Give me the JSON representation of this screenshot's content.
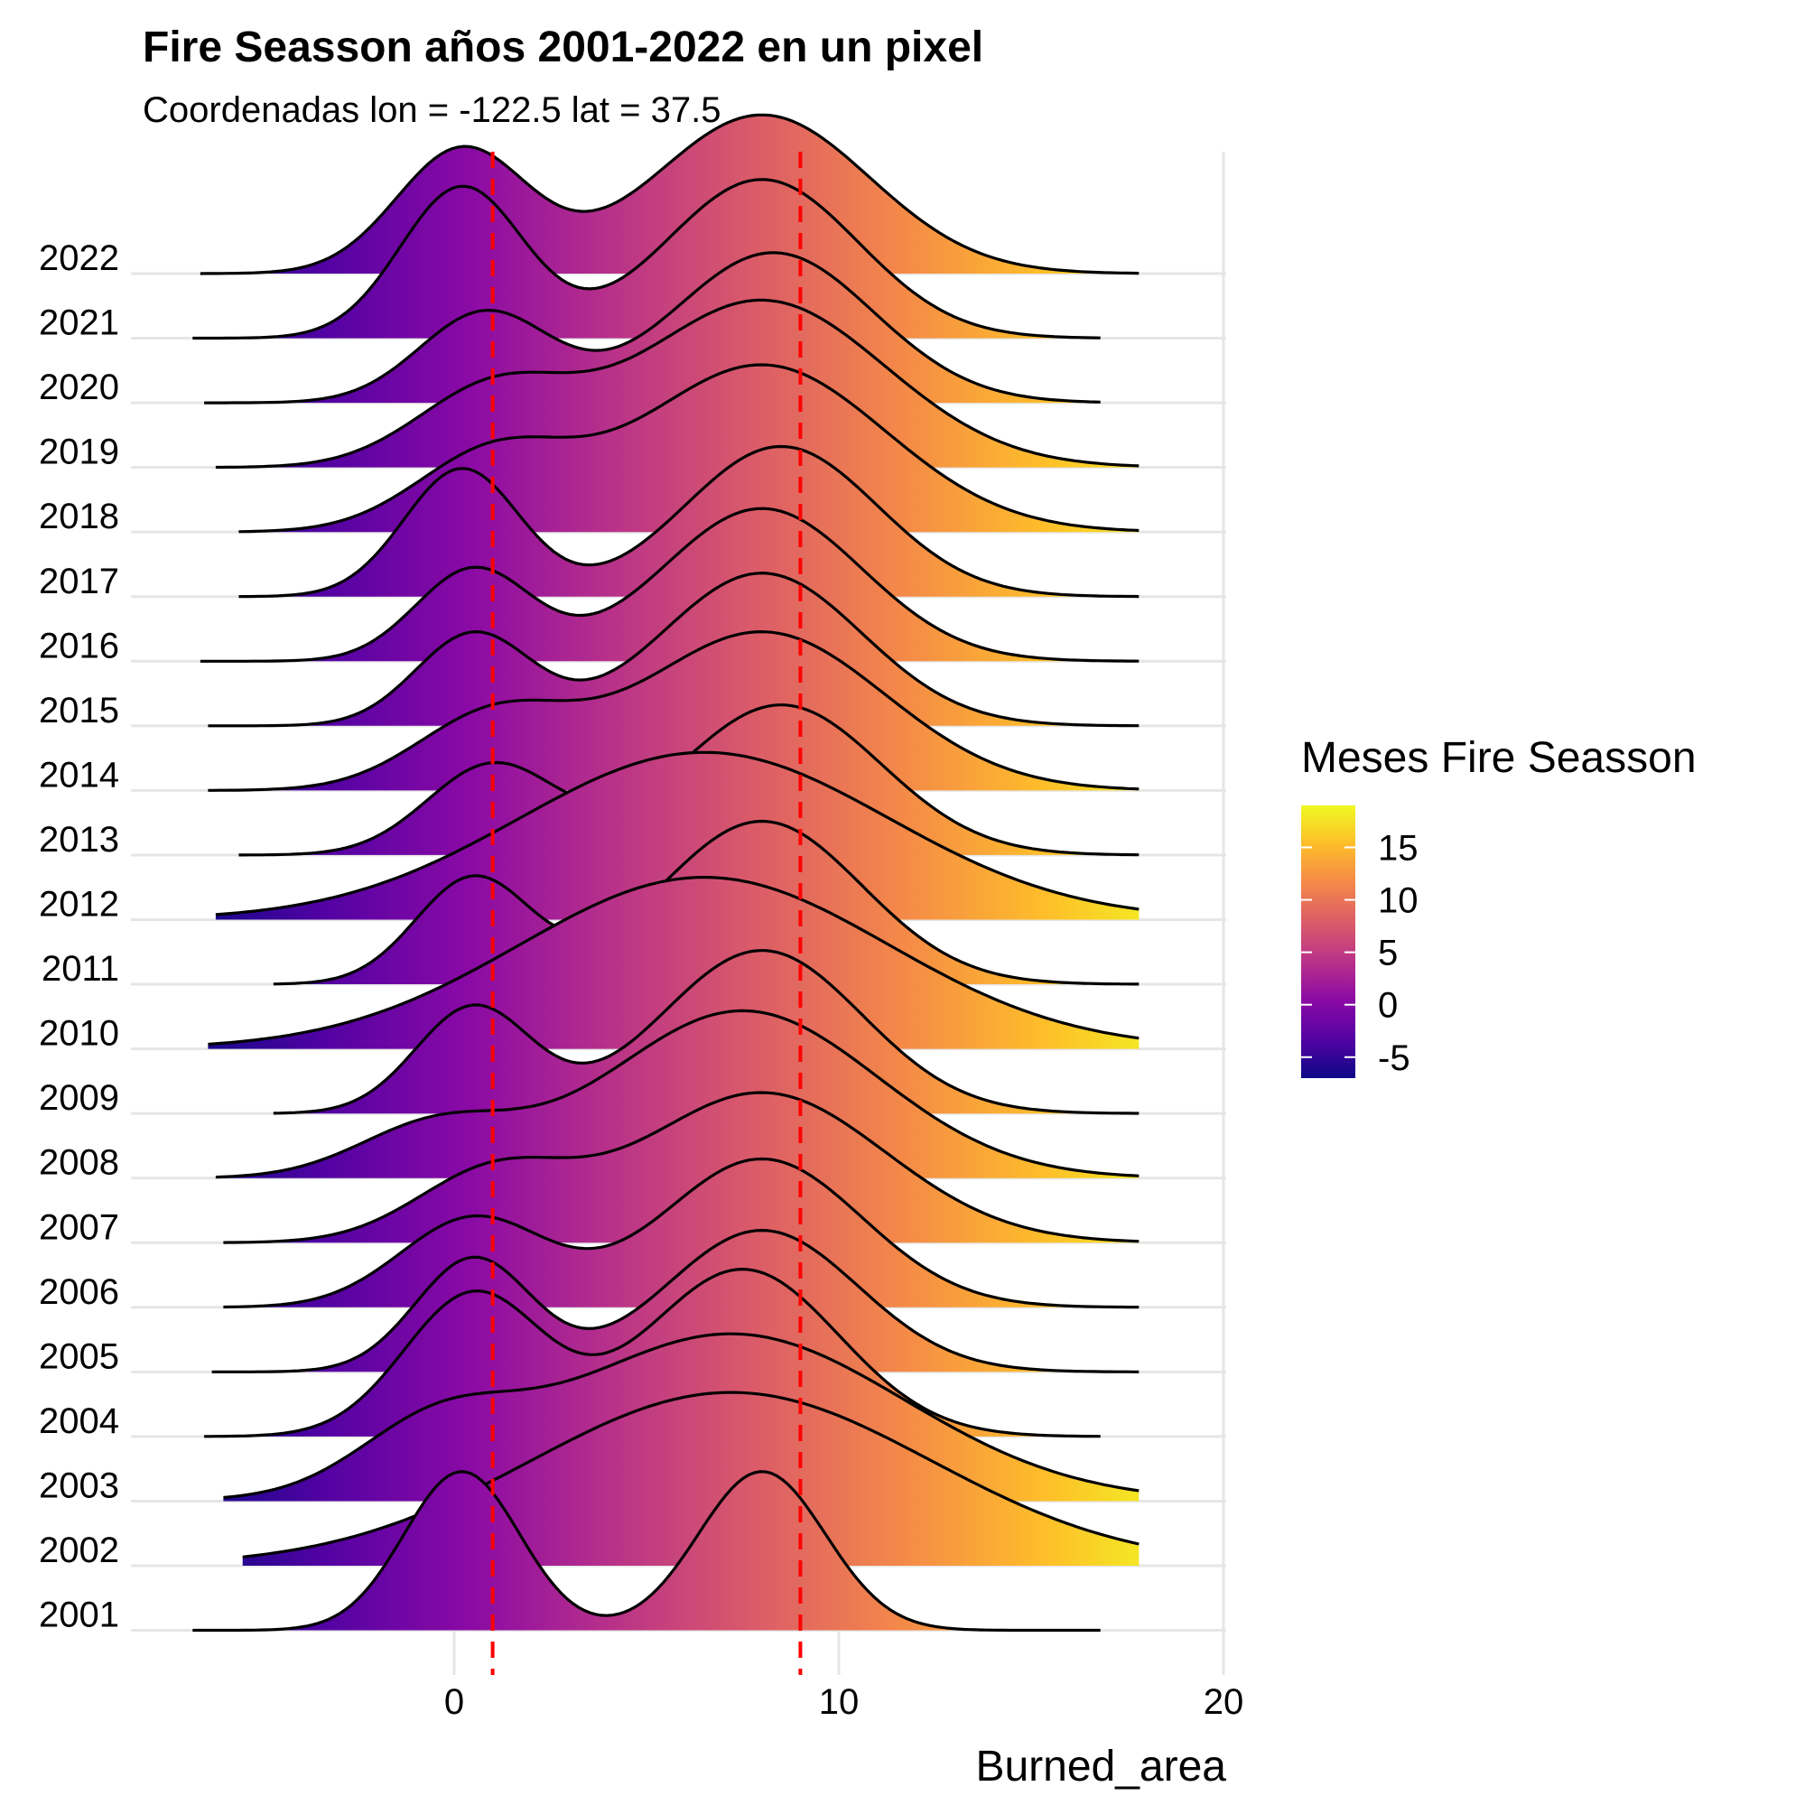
{
  "chart_data": {
    "type": "ridgeline",
    "title": "Fire Seasson años 2001-2022 en un pixel",
    "subtitle": "Coordenadas lon = -122.5 lat = 37.5",
    "xlabel": "Burned_area",
    "ylabel": "",
    "xlim": [
      -8.4,
      20
    ],
    "x_ticks": [
      0,
      10,
      20
    ],
    "grid": true,
    "reference_lines": [
      {
        "x": 1,
        "color": "#ff0000",
        "style": "dashed"
      },
      {
        "x": 9,
        "color": "#ff0000",
        "style": "dashed"
      }
    ],
    "legend": {
      "title": "Meses Fire Seasson",
      "placement": "right",
      "palette": [
        "#0d0887",
        "#5402a3",
        "#8b0aa5",
        "#b93289",
        "#db5c68",
        "#f48849",
        "#febd2a",
        "#f0f921"
      ],
      "range": [
        -7,
        19
      ],
      "ticks": [
        15,
        10,
        5,
        0,
        -5
      ]
    },
    "series": [
      {
        "name": "2001",
        "peaks": [
          [
            0.2,
            1.5,
            1.65
          ],
          [
            8,
            1.65,
            1.65
          ]
        ],
        "xmin": -6.8,
        "xmax": 16.8,
        "height": 1.85
      },
      {
        "name": "2002",
        "peaks": [
          [
            7.2,
            5.2,
            1.0
          ]
        ],
        "xmin": -5.5,
        "xmax": 17.8,
        "height": 2.02
      },
      {
        "name": "2003",
        "peaks": [
          [
            -0.5,
            2.0,
            0.35
          ],
          [
            7.2,
            4.5,
            1.0
          ]
        ],
        "xmin": -6.0,
        "xmax": 17.8,
        "height": 1.95
      },
      {
        "name": "2004",
        "peaks": [
          [
            0.5,
            1.8,
            0.85
          ],
          [
            7.5,
            2.5,
            1.0
          ]
        ],
        "xmin": -6.5,
        "xmax": 16.8,
        "height": 1.95
      },
      {
        "name": "2005",
        "peaks": [
          [
            0.5,
            1.5,
            0.8
          ],
          [
            8,
            2.5,
            1.0
          ]
        ],
        "xmin": -6.3,
        "xmax": 17.8,
        "height": 1.65
      },
      {
        "name": "2006",
        "peaks": [
          [
            0.5,
            1.9,
            0.6
          ],
          [
            8,
            2.6,
            1.0
          ]
        ],
        "xmin": -6.0,
        "xmax": 17.8,
        "height": 1.73
      },
      {
        "name": "2007",
        "peaks": [
          [
            1.0,
            2.0,
            0.45
          ],
          [
            8,
            3.2,
            1.0
          ]
        ],
        "xmin": -6.0,
        "xmax": 17.8,
        "height": 1.75
      },
      {
        "name": "2008",
        "peaks": [
          [
            -0.5,
            2.0,
            0.3
          ],
          [
            7.5,
            3.5,
            1.0
          ]
        ],
        "xmin": -6.2,
        "xmax": 17.8,
        "height": 1.95
      },
      {
        "name": "2009",
        "peaks": [
          [
            0.5,
            1.5,
            0.65
          ],
          [
            8,
            2.6,
            1.0
          ]
        ],
        "xmin": -4.7,
        "xmax": 17.8,
        "height": 1.9
      },
      {
        "name": "2010",
        "peaks": [
          [
            6.5,
            4.8,
            1.0
          ]
        ],
        "xmin": -6.4,
        "xmax": 17.8,
        "height": 2.0
      },
      {
        "name": "2011",
        "peaks": [
          [
            0.5,
            1.5,
            0.65
          ],
          [
            8,
            2.6,
            1.0
          ]
        ],
        "xmin": -4.7,
        "xmax": 17.8,
        "height": 1.9
      },
      {
        "name": "2012",
        "peaks": [
          [
            6.5,
            4.8,
            1.0
          ]
        ],
        "xmin": -6.2,
        "xmax": 17.8,
        "height": 1.95
      },
      {
        "name": "2013",
        "peaks": [
          [
            1.0,
            1.7,
            0.6
          ],
          [
            8.5,
            2.6,
            1.0
          ]
        ],
        "xmin": -5.6,
        "xmax": 17.8,
        "height": 1.75
      },
      {
        "name": "2014",
        "peaks": [
          [
            1.0,
            2.0,
            0.45
          ],
          [
            8,
            3.2,
            1.0
          ]
        ],
        "xmin": -6.4,
        "xmax": 17.8,
        "height": 1.85
      },
      {
        "name": "2015",
        "peaks": [
          [
            0.5,
            1.5,
            0.6
          ],
          [
            8,
            2.6,
            1.0
          ]
        ],
        "xmin": -6.4,
        "xmax": 17.8,
        "height": 1.78
      },
      {
        "name": "2016",
        "peaks": [
          [
            0.5,
            1.5,
            0.6
          ],
          [
            8,
            2.6,
            1.0
          ]
        ],
        "xmin": -6.6,
        "xmax": 17.8,
        "height": 1.78
      },
      {
        "name": "2017",
        "peaks": [
          [
            0.2,
            1.5,
            0.85
          ],
          [
            8.5,
            2.5,
            1.0
          ]
        ],
        "xmin": -5.6,
        "xmax": 17.8,
        "height": 1.75
      },
      {
        "name": "2018",
        "peaks": [
          [
            1.0,
            2.0,
            0.45
          ],
          [
            8,
            3.2,
            1.0
          ]
        ],
        "xmin": -5.6,
        "xmax": 17.8,
        "height": 1.95
      },
      {
        "name": "2019",
        "peaks": [
          [
            1.0,
            2.0,
            0.45
          ],
          [
            8,
            3.2,
            1.0
          ]
        ],
        "xmin": -6.2,
        "xmax": 17.8,
        "height": 1.95
      },
      {
        "name": "2020",
        "peaks": [
          [
            0.8,
            1.7,
            0.6
          ],
          [
            8.3,
            2.6,
            1.0
          ]
        ],
        "xmin": -6.5,
        "xmax": 16.8,
        "height": 1.75
      },
      {
        "name": "2021",
        "peaks": [
          [
            0.2,
            1.6,
            0.95
          ],
          [
            8,
            2.5,
            1.0
          ]
        ],
        "xmin": -6.8,
        "xmax": 16.8,
        "height": 1.85
      },
      {
        "name": "2022",
        "peaks": [
          [
            0.2,
            1.7,
            0.78
          ],
          [
            8,
            2.8,
            1.0
          ]
        ],
        "xmin": -6.6,
        "xmax": 17.8,
        "height": 1.85
      }
    ]
  }
}
